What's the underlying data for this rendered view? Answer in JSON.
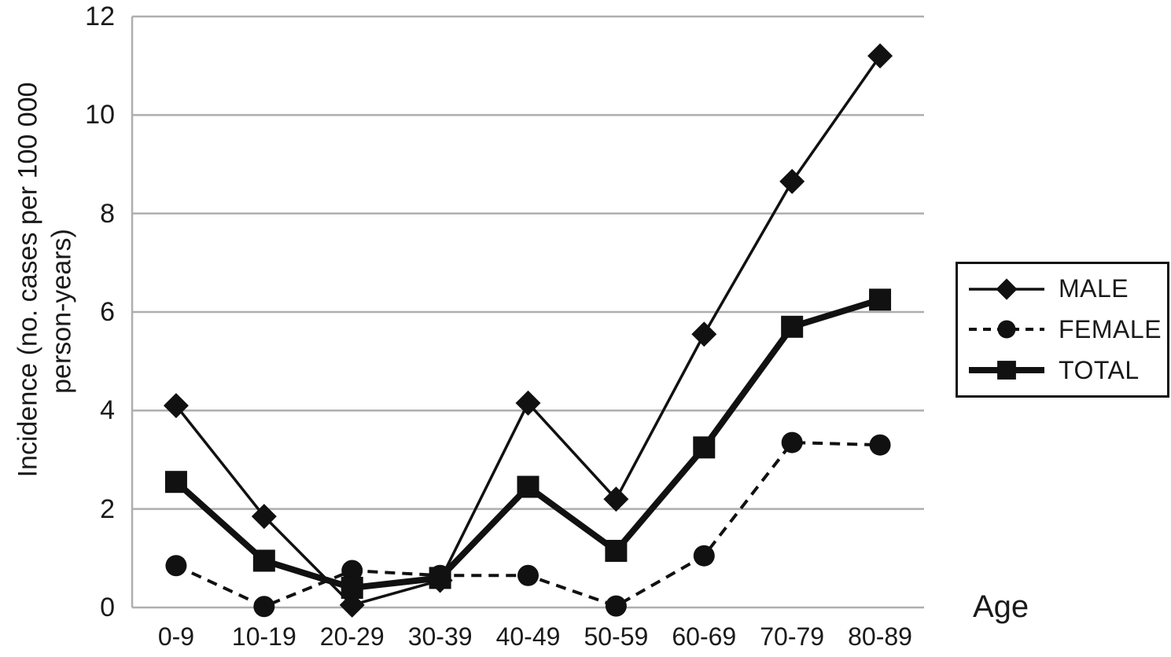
{
  "figure": {
    "y_axis_title_line1": "Incidence (no. cases per 100 000",
    "y_axis_title_line2": "person-years)",
    "x_axis_title": "Age"
  },
  "chart_data": {
    "type": "line",
    "title": "",
    "xlabel": "Age",
    "ylabel": "Incidence (no. cases per 100 000 person-years)",
    "ylim": [
      0,
      12
    ],
    "yticks": [
      0,
      2,
      4,
      6,
      8,
      10,
      12
    ],
    "grid": true,
    "legend_position": "right",
    "categories": [
      "0-9",
      "10-19",
      "20-29",
      "30-39",
      "40-49",
      "50-59",
      "60-69",
      "70-79",
      "80-89"
    ],
    "series": [
      {
        "name": "MALE",
        "marker": "diamond",
        "line": "solid-thin",
        "values": [
          4.1,
          1.85,
          0.05,
          0.55,
          4.15,
          2.2,
          5.55,
          8.65,
          11.2
        ]
      },
      {
        "name": "FEMALE",
        "marker": "circle",
        "line": "dashed",
        "values": [
          0.85,
          0.02,
          0.75,
          0.65,
          0.65,
          0.03,
          1.05,
          3.35,
          3.3
        ]
      },
      {
        "name": "TOTAL",
        "marker": "square",
        "line": "solid-thick",
        "values": [
          2.55,
          0.95,
          0.4,
          0.6,
          2.45,
          1.15,
          3.25,
          5.7,
          6.25
        ]
      }
    ],
    "colors": {
      "series": "#111111",
      "grid": "#aeaeae",
      "text": "#1a1a1a",
      "background": "#ffffff"
    }
  }
}
